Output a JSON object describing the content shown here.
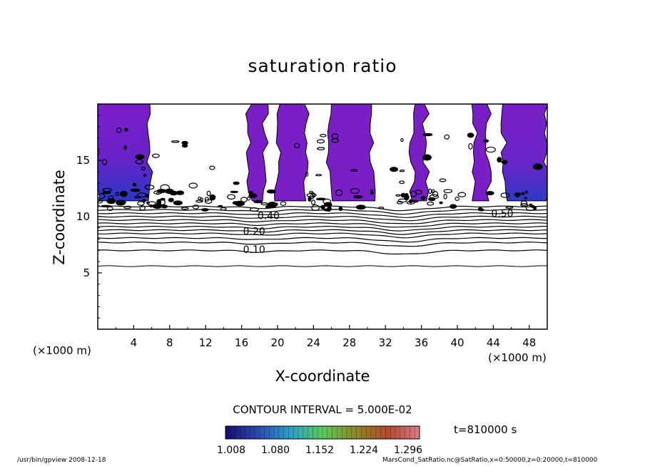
{
  "chart_data": {
    "type": "heatmap",
    "title": "saturation ratio",
    "xlabel": "X-coordinate",
    "ylabel": "Z-coordinate",
    "x_unit": "(×1000 m)",
    "y_unit": "(×1000 m)",
    "xlim": [
      0,
      50
    ],
    "ylim": [
      0,
      20
    ],
    "x_ticks": [
      4,
      8,
      12,
      16,
      20,
      24,
      28,
      32,
      36,
      40,
      44,
      48
    ],
    "y_ticks": [
      5,
      10,
      15
    ],
    "contour_interval_text": "CONTOUR INTERVAL = 5.000E-02",
    "contour_labels": [
      {
        "text": "0.10",
        "x": 17.4,
        "y": 7.1
      },
      {
        "text": "0.20",
        "x": 17.4,
        "y": 8.7
      },
      {
        "text": "0.40",
        "x": 19.0,
        "y": 10.1
      },
      {
        "text": "0.50",
        "x": 45.0,
        "y": 10.3
      }
    ],
    "colorbar": {
      "ticks": [
        "1.008",
        "1.080",
        "1.152",
        "1.224",
        "1.296"
      ],
      "colors": [
        "#1a0a6e",
        "#2a4ab0",
        "#2aa0c8",
        "#5ac85a",
        "#8a8a2a",
        "#b04a2a",
        "#e07a8a"
      ]
    },
    "time_label": "t=810000 s",
    "footer_left": "/usr/bin/gpview   2008-12-18",
    "footer_right": "MarsCond_SatRatio.nc@SatRatio,x=0:50000,z=0:20000,t=810000",
    "colors": {
      "purple": "#7a1ec8",
      "blue": "#2a38c8"
    }
  }
}
